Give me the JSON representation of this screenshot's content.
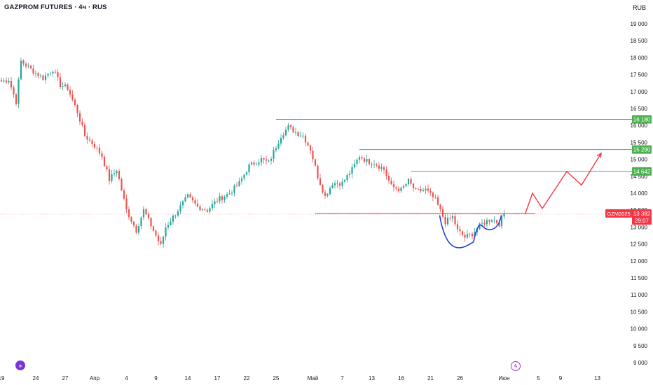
{
  "header": {
    "title": "GAZPROM FUTURES · 4ч · RUS",
    "currency": "RUB"
  },
  "chart_data": {
    "type": "candlestick",
    "title": "GAZPROM FUTURES · 4ч · RUS",
    "ylim": [
      8900,
      19300
    ],
    "y_ticks": [
      9000,
      9500,
      10000,
      10500,
      11000,
      11500,
      12000,
      12500,
      13000,
      13500,
      14000,
      14500,
      15000,
      15500,
      16000,
      16500,
      17000,
      17500,
      18000,
      18500,
      19000
    ],
    "x_ticks": [
      {
        "label": "19",
        "bar": 0
      },
      {
        "label": "24",
        "bar": 14
      },
      {
        "label": "27",
        "bar": 26
      },
      {
        "label": "Апр",
        "bar": 38
      },
      {
        "label": "4",
        "bar": 51
      },
      {
        "label": "9",
        "bar": 63
      },
      {
        "label": "14",
        "bar": 76
      },
      {
        "label": "17",
        "bar": 88
      },
      {
        "label": "22",
        "bar": 100
      },
      {
        "label": "25",
        "bar": 112
      },
      {
        "label": "Май",
        "bar": 127
      },
      {
        "label": "7",
        "bar": 139
      },
      {
        "label": "13",
        "bar": 151
      },
      {
        "label": "16",
        "bar": 163
      },
      {
        "label": "21",
        "bar": 175
      },
      {
        "label": "26",
        "bar": 187
      },
      {
        "label": "Июн",
        "bar": 205
      },
      {
        "label": "5",
        "bar": 219
      },
      {
        "label": "9",
        "bar": 228
      },
      {
        "label": "13",
        "bar": 243
      }
    ],
    "anchors": [
      [
        0,
        17300
      ],
      [
        3,
        17350
      ],
      [
        6,
        16700
      ],
      [
        8,
        17900
      ],
      [
        13,
        17600
      ],
      [
        17,
        17400
      ],
      [
        21,
        17650
      ],
      [
        24,
        17200
      ],
      [
        27,
        17100
      ],
      [
        31,
        16400
      ],
      [
        34,
        15700
      ],
      [
        38,
        15400
      ],
      [
        41,
        15100
      ],
      [
        44,
        14400
      ],
      [
        47,
        14700
      ],
      [
        51,
        13500
      ],
      [
        55,
        12900
      ],
      [
        58,
        13500
      ],
      [
        62,
        12900
      ],
      [
        65,
        12450
      ],
      [
        67,
        13000
      ],
      [
        71,
        13400
      ],
      [
        76,
        13900
      ],
      [
        80,
        13600
      ],
      [
        84,
        13500
      ],
      [
        88,
        13800
      ],
      [
        93,
        14000
      ],
      [
        97,
        14300
      ],
      [
        101,
        14800
      ],
      [
        106,
        15000
      ],
      [
        109,
        14900
      ],
      [
        114,
        15700
      ],
      [
        117,
        15950
      ],
      [
        120,
        15800
      ],
      [
        123,
        15700
      ],
      [
        126,
        15300
      ],
      [
        129,
        14500
      ],
      [
        132,
        13900
      ],
      [
        135,
        14300
      ],
      [
        139,
        14300
      ],
      [
        143,
        14700
      ],
      [
        146,
        15100
      ],
      [
        149,
        14950
      ],
      [
        152,
        14900
      ],
      [
        156,
        14700
      ],
      [
        159,
        14200
      ],
      [
        163,
        14100
      ],
      [
        166,
        14350
      ],
      [
        169,
        14050
      ],
      [
        173,
        14100
      ],
      [
        177,
        13800
      ],
      [
        181,
        13150
      ],
      [
        184,
        13300
      ],
      [
        186,
        12900
      ],
      [
        189,
        12700
      ],
      [
        192,
        12800
      ],
      [
        196,
        13100
      ],
      [
        200,
        13250
      ],
      [
        203,
        13100
      ],
      [
        205,
        13382
      ]
    ],
    "last_price": 13382,
    "price_label": {
      "symbol": "GZM2025",
      "price": "13 382",
      "timer": "29:07",
      "color": "#f23645"
    },
    "levels": [
      {
        "value": 16180,
        "label": "16 180",
        "from_bar": 112,
        "color": "#4caf50"
      },
      {
        "value": 15290,
        "label": "15 290",
        "from_bar": 146,
        "color": "#4caf50"
      },
      {
        "value": 14642,
        "label": "14 642",
        "from_bar": 167,
        "color": "#4caf50"
      }
    ],
    "support_line": {
      "value": 13400,
      "from_bar": 128,
      "to_bar": 208,
      "color": "#f23645"
    },
    "cup_pattern": {
      "from_bar": 177,
      "to_bar": 205,
      "low": 12400,
      "color": "#1e44d9"
    },
    "projection": {
      "color": "#f23645",
      "points": [
        [
          205,
          13382
        ],
        [
          208,
          14000
        ],
        [
          212,
          13550
        ],
        [
          222,
          14640
        ],
        [
          228,
          14240
        ],
        [
          236,
          15180
        ]
      ]
    },
    "colors": {
      "up": "#26a69a",
      "down": "#ef5350",
      "price_line": "#f7a5a5"
    },
    "grid": false
  }
}
